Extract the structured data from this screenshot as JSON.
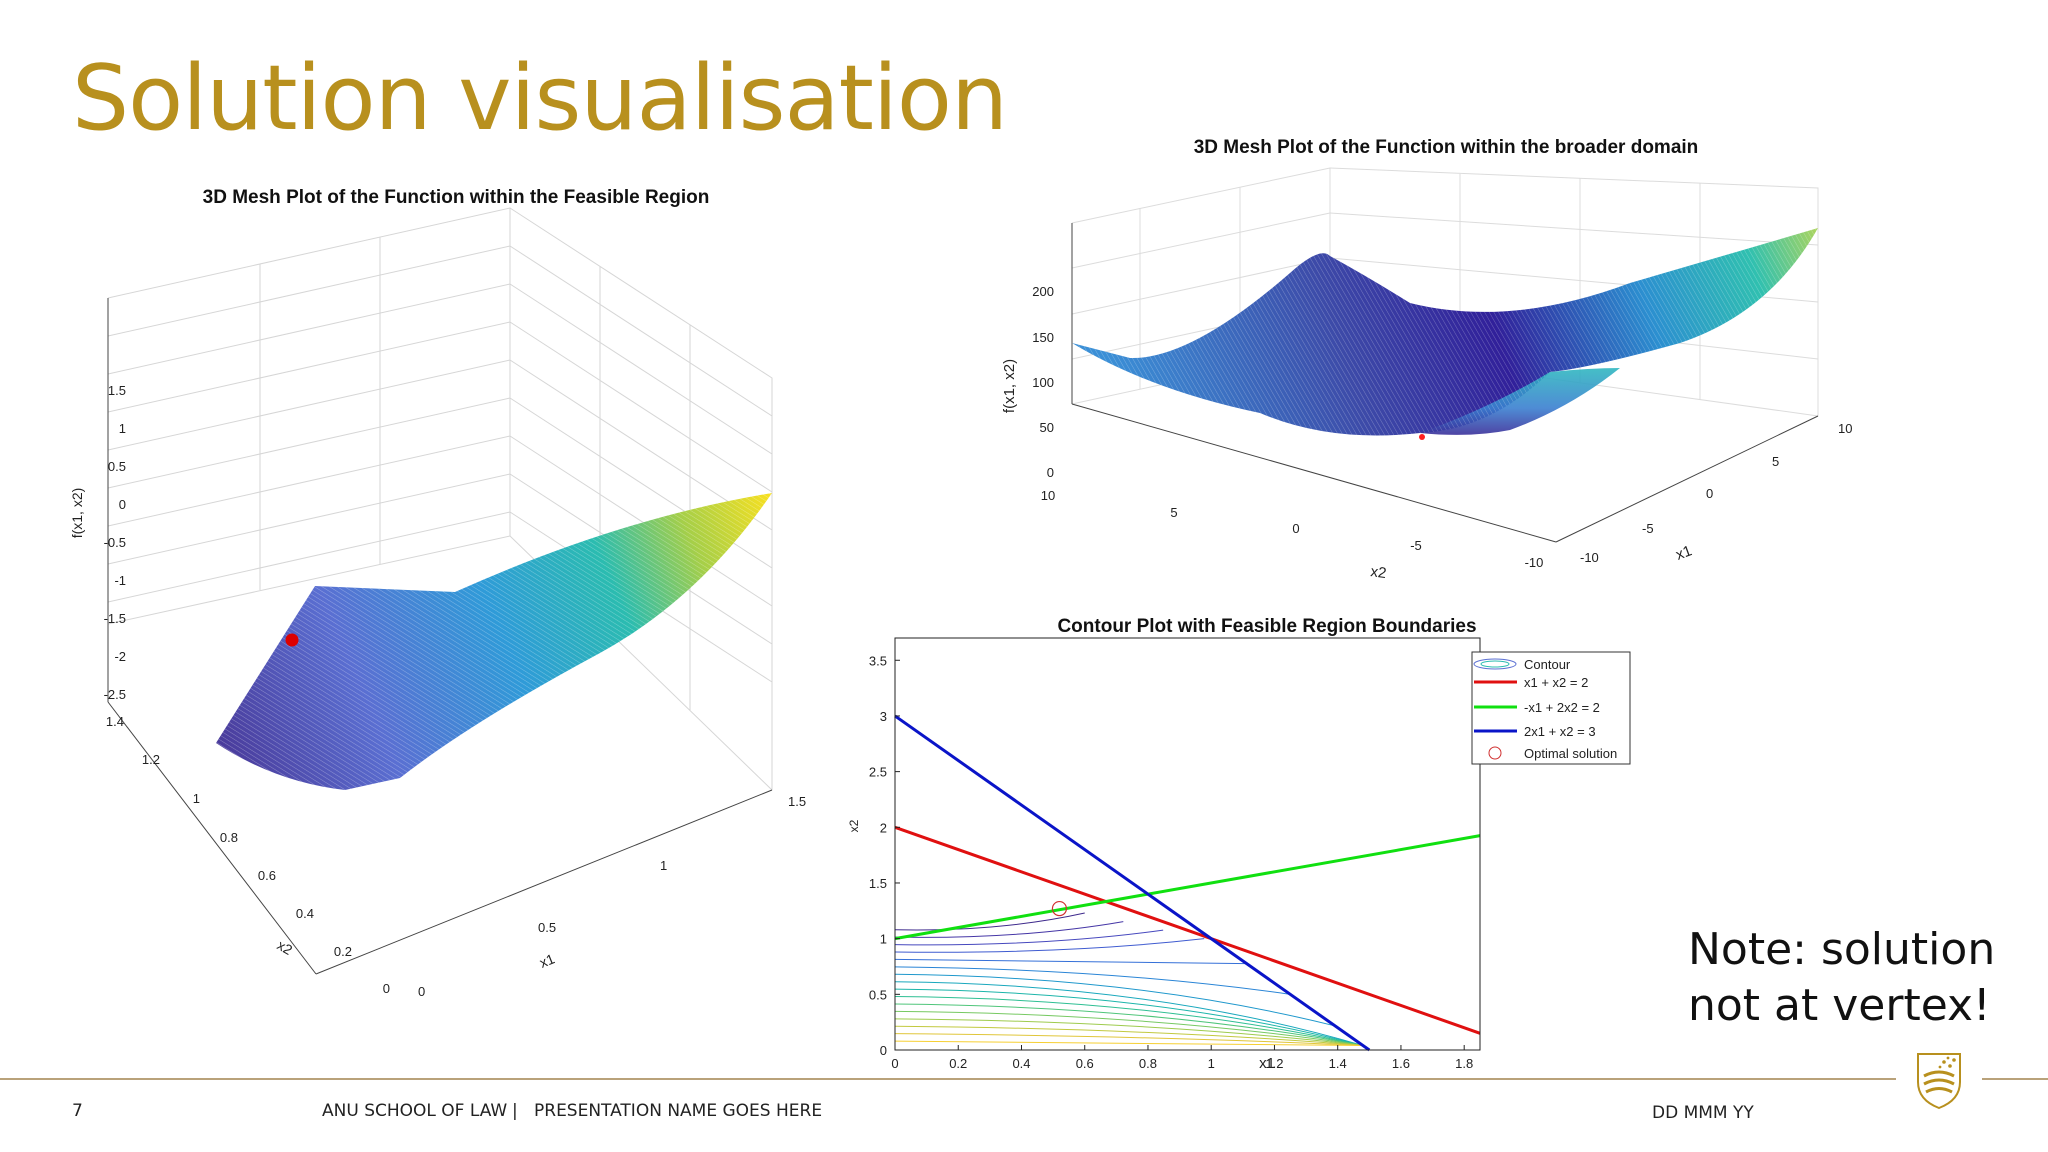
{
  "slide": {
    "title": "Solution visualisation",
    "note_line1": "Note: solution",
    "note_line2": "not at vertex!",
    "footer": {
      "page_number": "7",
      "org": "ANU SCHOOL OF LAW",
      "separator": "|",
      "presentation": "PRESENTATION NAME GOES HERE",
      "date": "DD MMM YY"
    },
    "colors": {
      "title": "#b8901e",
      "rule": "#b9a27a"
    },
    "crest_icon": "anu-crest-icon"
  },
  "chart_data": [
    {
      "type": "surface",
      "title": "3D Mesh Plot of the Function within the Feasible Region",
      "xlabel": "x1",
      "ylabel": "x2",
      "zlabel": "f(x1, x2)",
      "x_ticks": [
        "0",
        "0.5",
        "1",
        "1.5"
      ],
      "y_ticks": [
        "0",
        "0.2",
        "0.4",
        "0.6",
        "0.8",
        "1",
        "1.2",
        "1.4"
      ],
      "z_ticks": [
        "1.5",
        "1",
        "0.5",
        "0",
        "-0.5",
        "-1",
        "-1.5",
        "-2",
        "-2.5"
      ],
      "xlim": [
        0,
        1.5
      ],
      "ylim": [
        0,
        1.4
      ],
      "zlim": [
        -2.5,
        1.5
      ],
      "colormap": "parula",
      "marker": {
        "label": "optimal point",
        "color": "#dd0000"
      }
    },
    {
      "type": "surface",
      "title": "3D Mesh Plot of the Function within the broader domain",
      "xlabel": "x1",
      "ylabel": "x2",
      "zlabel": "f(x1, x2)",
      "x_ticks": [
        "-10",
        "-5",
        "0",
        "5",
        "10"
      ],
      "y_ticks": [
        "10",
        "5",
        "0",
        "-5",
        "-10"
      ],
      "z_ticks": [
        "200",
        "150",
        "100",
        "50",
        "0"
      ],
      "xlim": [
        -10,
        10
      ],
      "ylim": [
        -10,
        10
      ],
      "zlim": [
        0,
        200
      ],
      "colormap": "parula",
      "marker": {
        "label": "optimal point",
        "color": "#dd0000"
      }
    },
    {
      "type": "line",
      "title": "Contour Plot with Feasible Region Boundaries",
      "xlabel": "x1",
      "ylabel": "x2",
      "xlim": [
        0,
        1.85
      ],
      "ylim": [
        0,
        3.7
      ],
      "x_ticks": [
        0,
        0.2,
        0.4,
        0.6,
        0.8,
        1,
        1.2,
        1.4,
        1.6,
        1.8
      ],
      "x_tick_labels": [
        "0",
        "0.2",
        "0.4",
        "0.6",
        "0.8",
        "1",
        "1.2",
        "1.4",
        "1.6",
        "1.8"
      ],
      "y_ticks": [
        0,
        0.5,
        1,
        1.5,
        2,
        2.5,
        3,
        3.5
      ],
      "y_tick_labels": [
        "0",
        "0.5",
        "1",
        "1.5",
        "2",
        "2.5",
        "3",
        "3.5"
      ],
      "series": [
        {
          "name": "x1 + x2 = 2",
          "color": "#e01010",
          "x": [
            0,
            1.85
          ],
          "y": [
            2,
            0.15
          ]
        },
        {
          "name": "-x1 + 2x2 = 2",
          "color": "#10e010",
          "x": [
            0,
            1.85
          ],
          "y": [
            1,
            1.925
          ]
        },
        {
          "name": "2x1 + x2 = 3",
          "color": "#0a14c8",
          "x": [
            0,
            1.5
          ],
          "y": [
            3,
            0
          ]
        }
      ],
      "contour": {
        "name": "Contour",
        "levels": 16
      },
      "optimal_solution": {
        "name": "Optimal solution",
        "x": 0.52,
        "y": 1.27,
        "color": "#d03030"
      },
      "legend": [
        "Contour",
        "x1 + x2 = 2",
        "-x1 + 2x2 = 2",
        "2x1 + x2 = 3",
        "Optimal solution"
      ],
      "legend_position": "top-right"
    }
  ]
}
